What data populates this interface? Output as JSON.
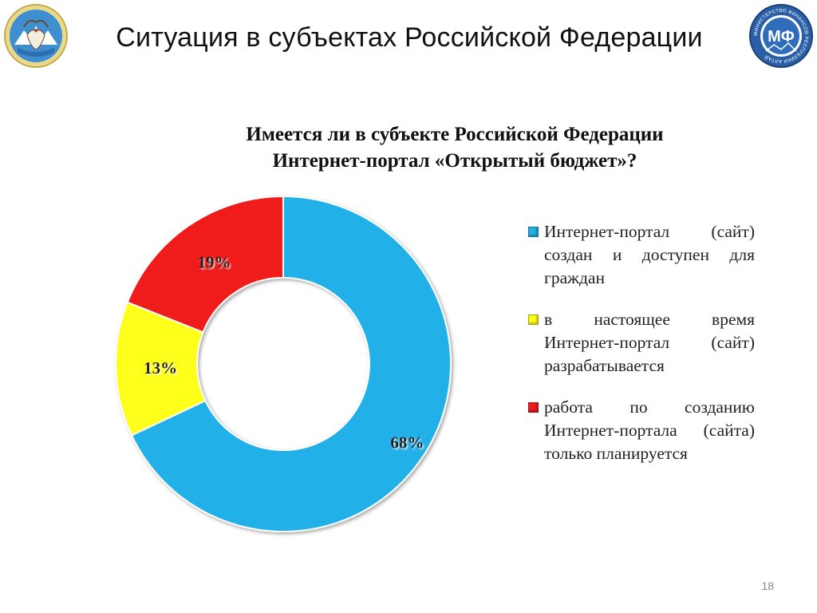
{
  "slide": {
    "title": "Ситуация в субъектах Российской Федерации",
    "page_number": "18",
    "logo_right_text": "МФ",
    "logo_right_ring_text": "МИНИСТЕРСТВО ФИНАНСОВ РЕСПУБЛИКИ АЛТАЙ"
  },
  "chart_data": {
    "type": "pie",
    "variant": "donut",
    "title_lines": [
      "Имеется ли в субъекте Российской Федерации",
      "Интернет-портал «Открытый бюджет»?"
    ],
    "categories": [
      "Интернет-портал (сайт) создан и доступен для граждан",
      "в настоящее время Интернет-портал (сайт) разрабатывается",
      "работа по созданию Интернет-портала (сайта) только планируется"
    ],
    "values": [
      68,
      13,
      19
    ],
    "labels": [
      "68%",
      "13%",
      "19%"
    ],
    "colors": [
      "#22b0e8",
      "#ffff1a",
      "#f01a1a"
    ],
    "legend_position": "right"
  }
}
